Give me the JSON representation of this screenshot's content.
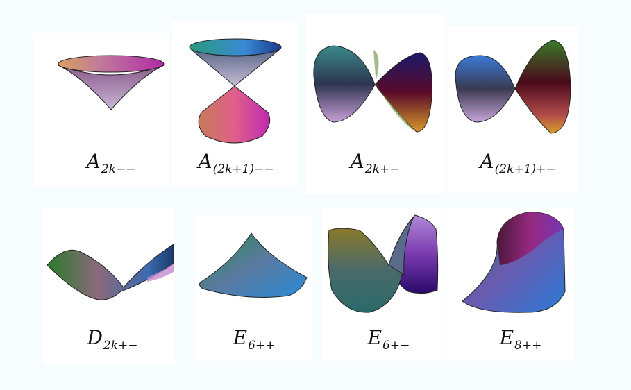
{
  "figures": [
    {
      "id": "a2k-minus-minus",
      "base": "A",
      "sub": "2k−−"
    },
    {
      "id": "a2k1-minus-minus",
      "base": "A",
      "sub": "(2k+1)−−"
    },
    {
      "id": "a2k-plus-minus",
      "base": "A",
      "sub": "2k+−"
    },
    {
      "id": "a2k1-plus-minus",
      "base": "A",
      "sub": "(2k+1)+−"
    },
    {
      "id": "d2k-plus-minus",
      "base": "D",
      "sub": "2k+−"
    },
    {
      "id": "e6-plus-plus",
      "base": "E",
      "sub": "6++"
    },
    {
      "id": "e6-plus-minus",
      "base": "E",
      "sub": "6+−"
    },
    {
      "id": "e8-plus-plus",
      "base": "E",
      "sub": "8++"
    }
  ]
}
